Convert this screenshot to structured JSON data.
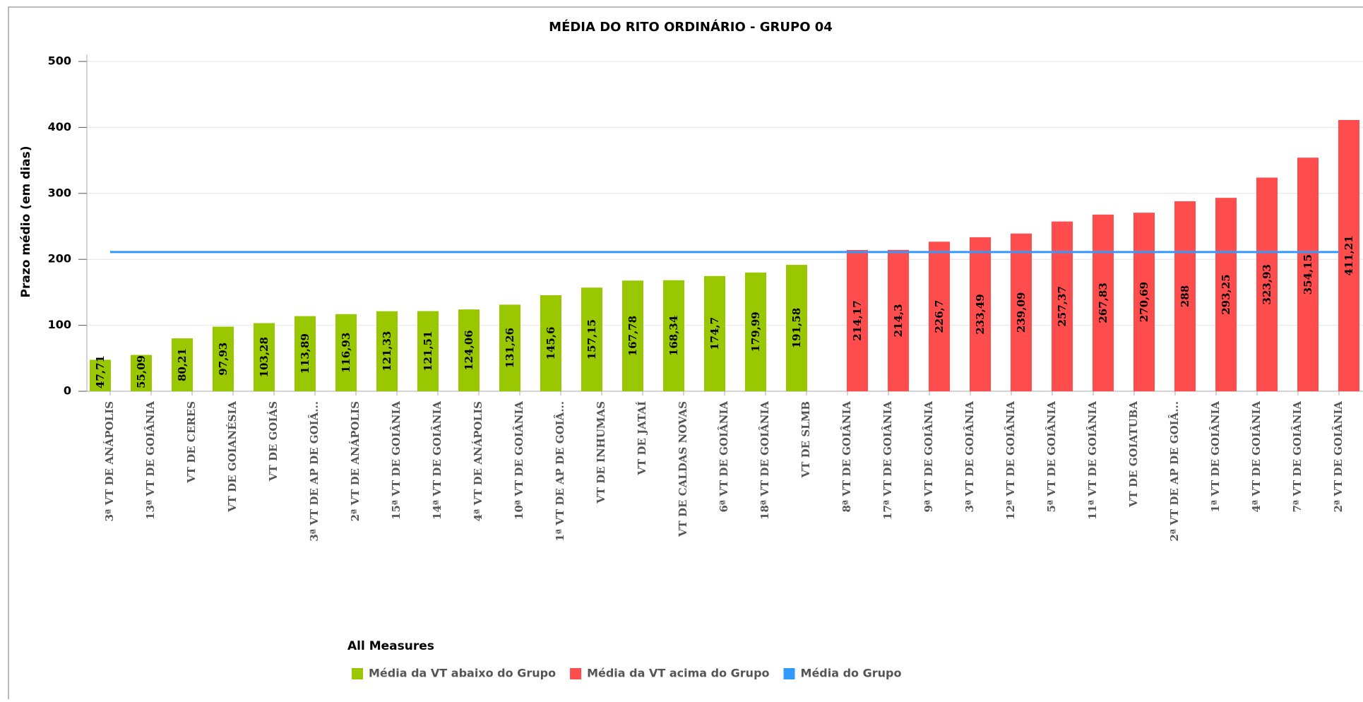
{
  "chart_data": {
    "type": "bar",
    "title": "MÉDIA DO RITO ORDINÁRIO - GRUPO 04",
    "y_label": "Prazo médio (em dias)",
    "legend_title": "All Measures",
    "legend_position": "bottom",
    "grid": true,
    "ylim": [
      0,
      500
    ],
    "yticks": [
      0,
      100,
      200,
      300,
      400,
      500
    ],
    "categories": [
      "3ª VT DE ANÁPOLIS",
      "13ª VT DE GOIÂNIA",
      "VT DE CERES",
      "VT DE GOIANÉSIA",
      "VT DE GOIÁS",
      "3ª VT DE AP DE GOIÂ...",
      "2ª VT DE ANÁPOLIS",
      "15ª VT DE GOIÂNIA",
      "14ª VT DE GOIÂNIA",
      "4ª VT DE ANÁPOLIS",
      "10ª VT DE GOIÂNIA",
      "1ª VT DE AP DE GOIÂ...",
      "VT DE INHUMAS",
      "VT DE JATAÍ",
      "VT DE CALDAS NOVAS",
      "6ª VT DE GOIÂNIA",
      "18ª VT DE GOIÂNIA",
      "VT DE SLMB",
      "8ª VT DE GOIÂNIA",
      "17ª VT DE GOIÂNIA",
      "9ª VT DE GOIÂNIA",
      "3ª VT DE GOIÂNIA",
      "12ª VT DE GOIÂNIA",
      "5ª VT DE GOIÂNIA",
      "11ª VT DE GOIÂNIA",
      "VT DE GOIATUBA",
      "2ª VT DE AP DE GOIÂ...",
      "1ª VT DE GOIÂNIA",
      "4ª VT DE GOIÂNIA",
      "7ª VT DE GOIÂNIA",
      "2ª VT DE GOIÂNIA"
    ],
    "series": [
      {
        "name": "Média da VT abaixo do Grupo",
        "color": "#99c800",
        "kind": "bar",
        "values": [
          47.71,
          55.09,
          80.21,
          97.93,
          103.28,
          113.89,
          116.93,
          121.33,
          121.51,
          124.06,
          131.26,
          145.6,
          157.15,
          167.78,
          168.34,
          174.7,
          179.99,
          191.58,
          null,
          null,
          null,
          null,
          null,
          null,
          null,
          null,
          null,
          null,
          null,
          null,
          null
        ],
        "value_labels": [
          "47,71",
          "55,09",
          "80,21",
          "97,93",
          "103,28",
          "113,89",
          "116,93",
          "121,33",
          "121,51",
          "124,06",
          "131,26",
          "145,6",
          "157,15",
          "167,78",
          "168,34",
          "174,7",
          "179,99",
          "191,58",
          null,
          null,
          null,
          null,
          null,
          null,
          null,
          null,
          null,
          null,
          null,
          null,
          null
        ]
      },
      {
        "name": "Média da VT acima do Grupo",
        "color": "#ff4d4d",
        "kind": "bar",
        "values": [
          null,
          null,
          null,
          null,
          null,
          null,
          null,
          null,
          null,
          null,
          null,
          null,
          null,
          null,
          null,
          null,
          null,
          null,
          214.17,
          214.3,
          226.7,
          233.49,
          239.09,
          257.37,
          267.83,
          270.69,
          288,
          293.25,
          323.93,
          354.15,
          411.21
        ],
        "value_labels": [
          null,
          null,
          null,
          null,
          null,
          null,
          null,
          null,
          null,
          null,
          null,
          null,
          null,
          null,
          null,
          null,
          null,
          null,
          "214,17",
          "214,3",
          "226,7",
          "233,49",
          "239,09",
          "257,37",
          "267,83",
          "270,69",
          "288",
          "293,25",
          "323,93",
          "354,15",
          "411,21"
        ]
      },
      {
        "name": "Média do Grupo",
        "color": "#3399ff",
        "kind": "line",
        "values": [
          211,
          211,
          211,
          211,
          211,
          211,
          211,
          211,
          211,
          211,
          211,
          211,
          211,
          211,
          211,
          211,
          211,
          211,
          211,
          211,
          211,
          211,
          211,
          211,
          211,
          211,
          211,
          211,
          211,
          211,
          211
        ]
      }
    ]
  }
}
